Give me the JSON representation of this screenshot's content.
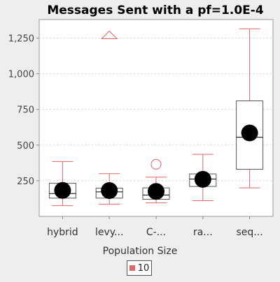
{
  "chart_data": {
    "type": "boxplot",
    "title": "Messages Sent  with a pf=1.0E-4",
    "xlabel": "Population Size",
    "ylabel": "",
    "ylim": [
      0,
      1380
    ],
    "yticks": [
      250,
      500,
      750,
      1000,
      1250
    ],
    "ytick_labels": [
      "250",
      "500",
      "750",
      "1,000",
      "1,250"
    ],
    "grid": true,
    "legend_position": "bottom",
    "categories": [
      "hybrid",
      "levy...",
      "C-...",
      "ra...",
      "seq..."
    ],
    "series": [
      {
        "name": "10",
        "color": "#e06666",
        "boxes": [
          {
            "whisker_low": 75,
            "q1": 128,
            "median": 160,
            "q3": 232,
            "whisker_high": 385,
            "mean": 182,
            "outliers": []
          },
          {
            "whisker_low": 85,
            "q1": 128,
            "median": 172,
            "q3": 198,
            "whisker_high": 300,
            "mean": 181,
            "outliers": [
              {
                "value": 1270,
                "marker": "triangle"
              }
            ]
          },
          {
            "whisker_low": 95,
            "q1": 120,
            "median": 150,
            "q3": 200,
            "whisker_high": 275,
            "mean": 175,
            "outliers": [
              {
                "value": 365,
                "marker": "circle"
              }
            ]
          },
          {
            "whisker_low": 110,
            "q1": 210,
            "median": 262,
            "q3": 298,
            "whisker_high": 435,
            "mean": 260,
            "outliers": []
          },
          {
            "whisker_low": 200,
            "q1": 330,
            "median": 555,
            "q3": 810,
            "whisker_high": 1315,
            "mean": 585,
            "outliers": []
          }
        ]
      }
    ]
  }
}
